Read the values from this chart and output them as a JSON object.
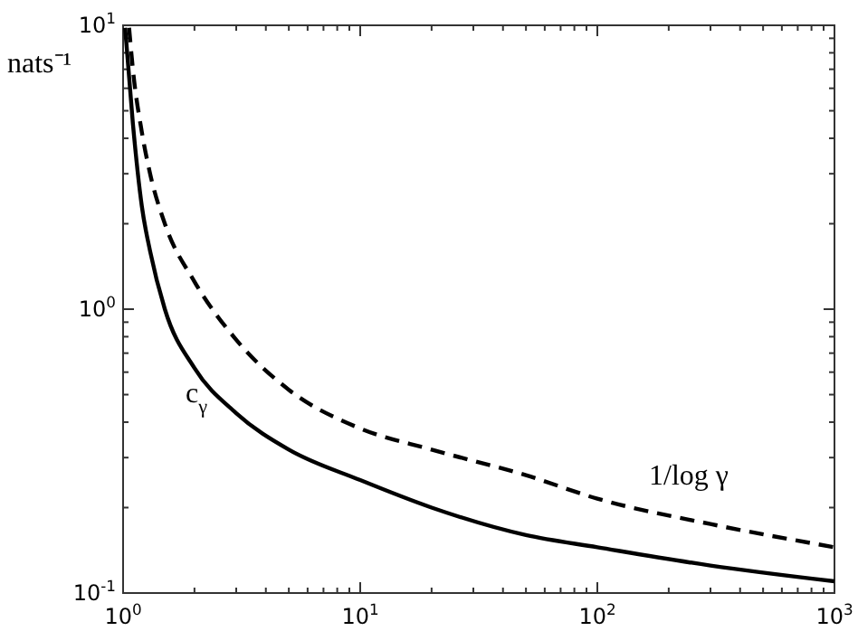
{
  "chart_data": {
    "type": "line",
    "ylabel": "nats⁻¹",
    "log": "xy",
    "grid": false,
    "marker": "none",
    "xlim": [
      1,
      1000
    ],
    "ylim": [
      0.1,
      10
    ],
    "xticks": [
      {
        "value": 1,
        "label": "10$^{0}$"
      },
      {
        "value": 2,
        "label": null
      },
      {
        "value": 3,
        "label": null
      },
      {
        "value": 4,
        "label": null
      },
      {
        "value": 5,
        "label": null
      },
      {
        "value": 6,
        "label": null
      },
      {
        "value": 7,
        "label": null
      },
      {
        "value": 8,
        "label": null
      },
      {
        "value": 9,
        "label": null
      },
      {
        "value": 10,
        "label": "10$^{1}$"
      },
      {
        "value": 20,
        "label": null
      },
      {
        "value": 30,
        "label": null
      },
      {
        "value": 40,
        "label": null
      },
      {
        "value": 50,
        "label": null
      },
      {
        "value": 60,
        "label": null
      },
      {
        "value": 70,
        "label": null
      },
      {
        "value": 80,
        "label": null
      },
      {
        "value": 90,
        "label": null
      },
      {
        "value": 100,
        "label": "10$^{2}$"
      },
      {
        "value": 200,
        "label": null
      },
      {
        "value": 300,
        "label": null
      },
      {
        "value": 400,
        "label": null
      },
      {
        "value": 500,
        "label": null
      },
      {
        "value": 600,
        "label": null
      },
      {
        "value": 700,
        "label": null
      },
      {
        "value": 800,
        "label": null
      },
      {
        "value": 900,
        "label": null
      },
      {
        "value": 1000,
        "label": "10$^{3}$"
      }
    ],
    "yticks": [
      {
        "value": 0.1,
        "label": "10$^{-1}$"
      },
      {
        "value": 0.2,
        "label": null
      },
      {
        "value": 0.3,
        "label": null
      },
      {
        "value": 0.4,
        "label": null
      },
      {
        "value": 0.5,
        "label": null
      },
      {
        "value": 0.6,
        "label": null
      },
      {
        "value": 0.7,
        "label": null
      },
      {
        "value": 0.8,
        "label": null
      },
      {
        "value": 0.9,
        "label": null
      },
      {
        "value": 1,
        "label": "10$^{0}$"
      },
      {
        "value": 2,
        "label": null
      },
      {
        "value": 3,
        "label": null
      },
      {
        "value": 4,
        "label": null
      },
      {
        "value": 5,
        "label": null
      },
      {
        "value": 6,
        "label": null
      },
      {
        "value": 7,
        "label": null
      },
      {
        "value": 8,
        "label": null
      },
      {
        "value": 9,
        "label": null
      },
      {
        "value": 10,
        "label": "10$^{1}$"
      }
    ],
    "series": [
      {
        "name": "c$_{γ}$",
        "color": "#000000",
        "line_style": "solid",
        "x": [
          1.02,
          1.1,
          1.2,
          1.3,
          1.5,
          2,
          3,
          5,
          10,
          20,
          50,
          100,
          300,
          1000
        ],
        "values": [
          9.8,
          4.5,
          2.3,
          1.6,
          1.0,
          0.62,
          0.43,
          0.32,
          0.25,
          0.2,
          0.16,
          0.145,
          0.125,
          0.11
        ]
      },
      {
        "name": "1/log γ",
        "color": "#000000",
        "line_style": "dashed",
        "x": [
          1.06,
          1.1,
          1.2,
          1.3,
          1.5,
          2,
          3,
          5,
          10,
          20,
          50,
          100,
          300,
          1000
        ],
        "values": [
          9.8,
          7,
          4.2,
          3,
          2,
          1.25,
          0.78,
          0.52,
          0.38,
          0.32,
          0.26,
          0.215,
          0.175,
          0.145
        ]
      }
    ]
  }
}
